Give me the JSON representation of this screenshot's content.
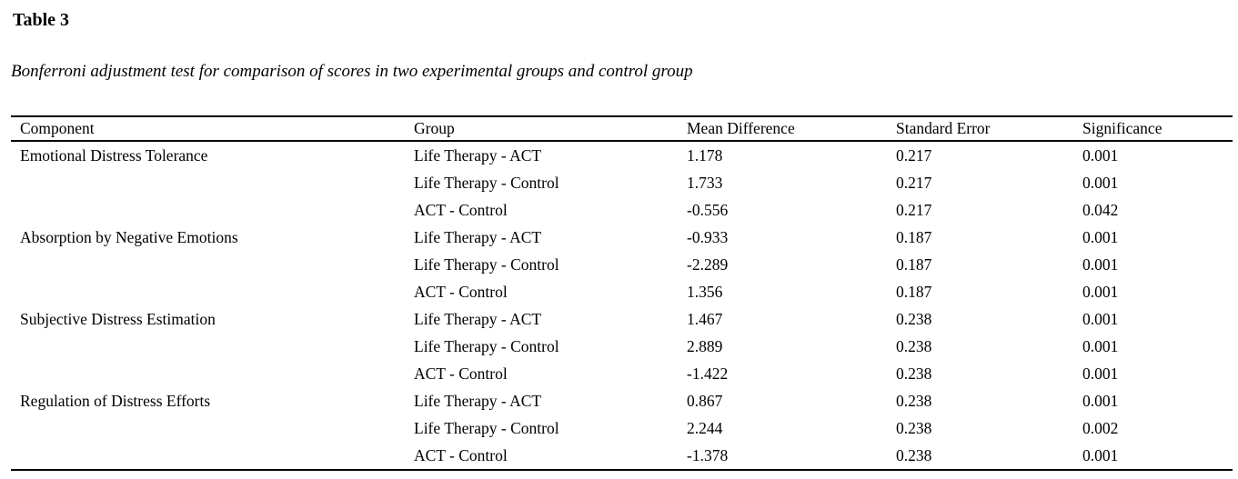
{
  "title": "Table 3",
  "caption": "Bonferroni adjustment test for comparison of scores in two experimental groups and control group",
  "table": {
    "columns": [
      "Component",
      "Group",
      "Mean Difference",
      "Standard Error",
      "Significance"
    ],
    "rows": [
      {
        "component": "Emotional Distress Tolerance",
        "group": "Life Therapy - ACT",
        "mean_difference": "1.178",
        "standard_error": "0.217",
        "significance": "0.001"
      },
      {
        "component": "",
        "group": "Life Therapy - Control",
        "mean_difference": "1.733",
        "standard_error": "0.217",
        "significance": "0.001"
      },
      {
        "component": "",
        "group": "ACT - Control",
        "mean_difference": "-0.556",
        "standard_error": "0.217",
        "significance": "0.042"
      },
      {
        "component": "Absorption by Negative Emotions",
        "group": "Life Therapy - ACT",
        "mean_difference": "-0.933",
        "standard_error": "0.187",
        "significance": "0.001"
      },
      {
        "component": "",
        "group": "Life Therapy - Control",
        "mean_difference": "-2.289",
        "standard_error": "0.187",
        "significance": "0.001"
      },
      {
        "component": "",
        "group": "ACT - Control",
        "mean_difference": "1.356",
        "standard_error": "0.187",
        "significance": "0.001"
      },
      {
        "component": "Subjective Distress Estimation",
        "group": "Life Therapy - ACT",
        "mean_difference": "1.467",
        "standard_error": "0.238",
        "significance": "0.001"
      },
      {
        "component": "",
        "group": "Life Therapy - Control",
        "mean_difference": "2.889",
        "standard_error": "0.238",
        "significance": "0.001"
      },
      {
        "component": "",
        "group": "ACT - Control",
        "mean_difference": "-1.422",
        "standard_error": "0.238",
        "significance": "0.001"
      },
      {
        "component": "Regulation of Distress Efforts",
        "group": "Life Therapy - ACT",
        "mean_difference": "0.867",
        "standard_error": "0.238",
        "significance": "0.001"
      },
      {
        "component": "",
        "group": "Life Therapy - Control",
        "mean_difference": "2.244",
        "standard_error": "0.238",
        "significance": "0.002"
      },
      {
        "component": "",
        "group": "ACT - Control",
        "mean_difference": "-1.378",
        "standard_error": "0.238",
        "significance": "0.001"
      }
    ]
  }
}
